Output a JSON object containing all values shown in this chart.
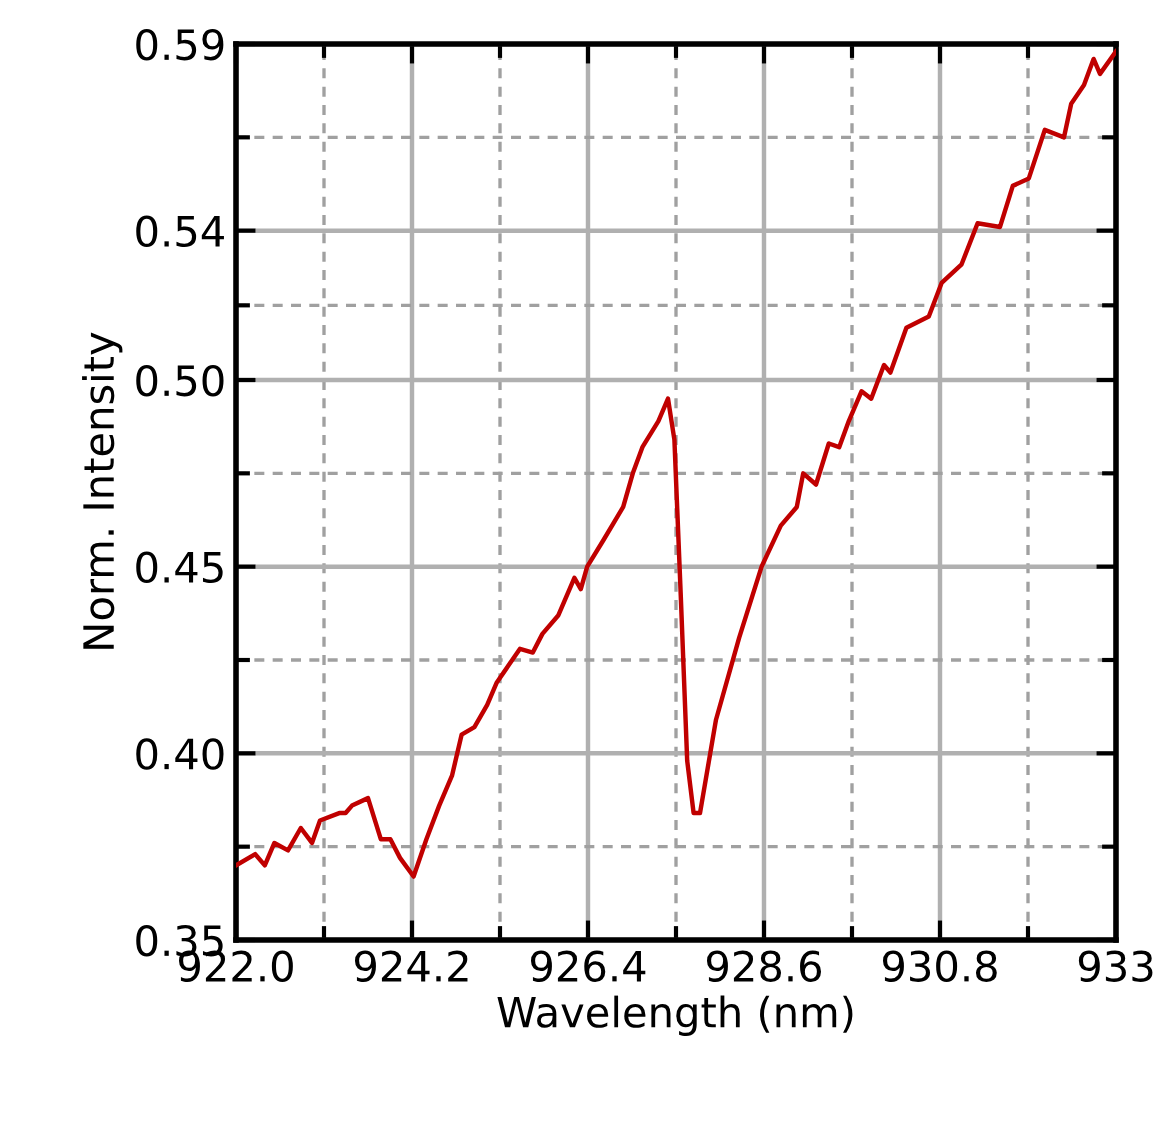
{
  "chart_data": {
    "type": "line",
    "xlabel": "Wavelength (nm)",
    "ylabel": "Norm. Intensity",
    "xlim": [
      922.0,
      933.0
    ],
    "ylim": [
      0.35,
      0.59
    ],
    "xticks": [
      {
        "value": 922.0,
        "label": "922.0"
      },
      {
        "value": 924.2,
        "label": "924.2"
      },
      {
        "value": 926.4,
        "label": "926.4"
      },
      {
        "value": 928.6,
        "label": "928.6"
      },
      {
        "value": 930.8,
        "label": "930.8"
      },
      {
        "value": 933.0,
        "label": "933"
      }
    ],
    "yticks": [
      {
        "value": 0.35,
        "label": "0.35"
      },
      {
        "value": 0.4,
        "label": "0.40"
      },
      {
        "value": 0.45,
        "label": "0.45"
      },
      {
        "value": 0.5,
        "label": "0.50"
      },
      {
        "value": 0.54,
        "label": "0.54"
      },
      {
        "value": 0.59,
        "label": "0.59"
      }
    ],
    "grid": true,
    "line_style": "solid",
    "marker": "none",
    "series": [
      {
        "color": "#c00000",
        "x": [
          922.0,
          922.24,
          922.36,
          922.48,
          922.65,
          922.81,
          922.95,
          923.05,
          923.29,
          923.37,
          923.45,
          923.65,
          923.81,
          923.93,
          924.05,
          924.22,
          924.38,
          924.54,
          924.7,
          924.82,
          924.98,
          925.14,
          925.26,
          925.55,
          925.71,
          925.83,
          926.03,
          926.23,
          926.31,
          926.39,
          926.59,
          926.84,
          926.96,
          927.08,
          927.28,
          927.4,
          927.48,
          927.56,
          927.64,
          927.72,
          927.8,
          928.0,
          928.29,
          928.57,
          928.81,
          929.01,
          929.09,
          929.25,
          929.41,
          929.54,
          929.66,
          929.82,
          929.94,
          930.1,
          930.18,
          930.38,
          930.66,
          930.82,
          931.07,
          931.27,
          931.55,
          931.71,
          931.91,
          932.11,
          932.35,
          932.44,
          932.6,
          932.72,
          932.8,
          933.0
        ],
        "values": [
          0.37,
          0.373,
          0.37,
          0.376,
          0.374,
          0.38,
          0.376,
          0.382,
          0.384,
          0.384,
          0.386,
          0.388,
          0.377,
          0.377,
          0.372,
          0.367,
          0.377,
          0.386,
          0.394,
          0.405,
          0.407,
          0.413,
          0.419,
          0.428,
          0.427,
          0.432,
          0.437,
          0.447,
          0.444,
          0.45,
          0.457,
          0.466,
          0.475,
          0.482,
          0.489,
          0.495,
          0.484,
          0.442,
          0.398,
          0.384,
          0.384,
          0.409,
          0.431,
          0.45,
          0.461,
          0.466,
          0.475,
          0.472,
          0.483,
          0.482,
          0.489,
          0.497,
          0.495,
          0.504,
          0.502,
          0.514,
          0.517,
          0.526,
          0.531,
          0.542,
          0.541,
          0.552,
          0.554,
          0.567,
          0.565,
          0.574,
          0.579,
          0.586,
          0.582,
          0.588
        ]
      }
    ]
  }
}
